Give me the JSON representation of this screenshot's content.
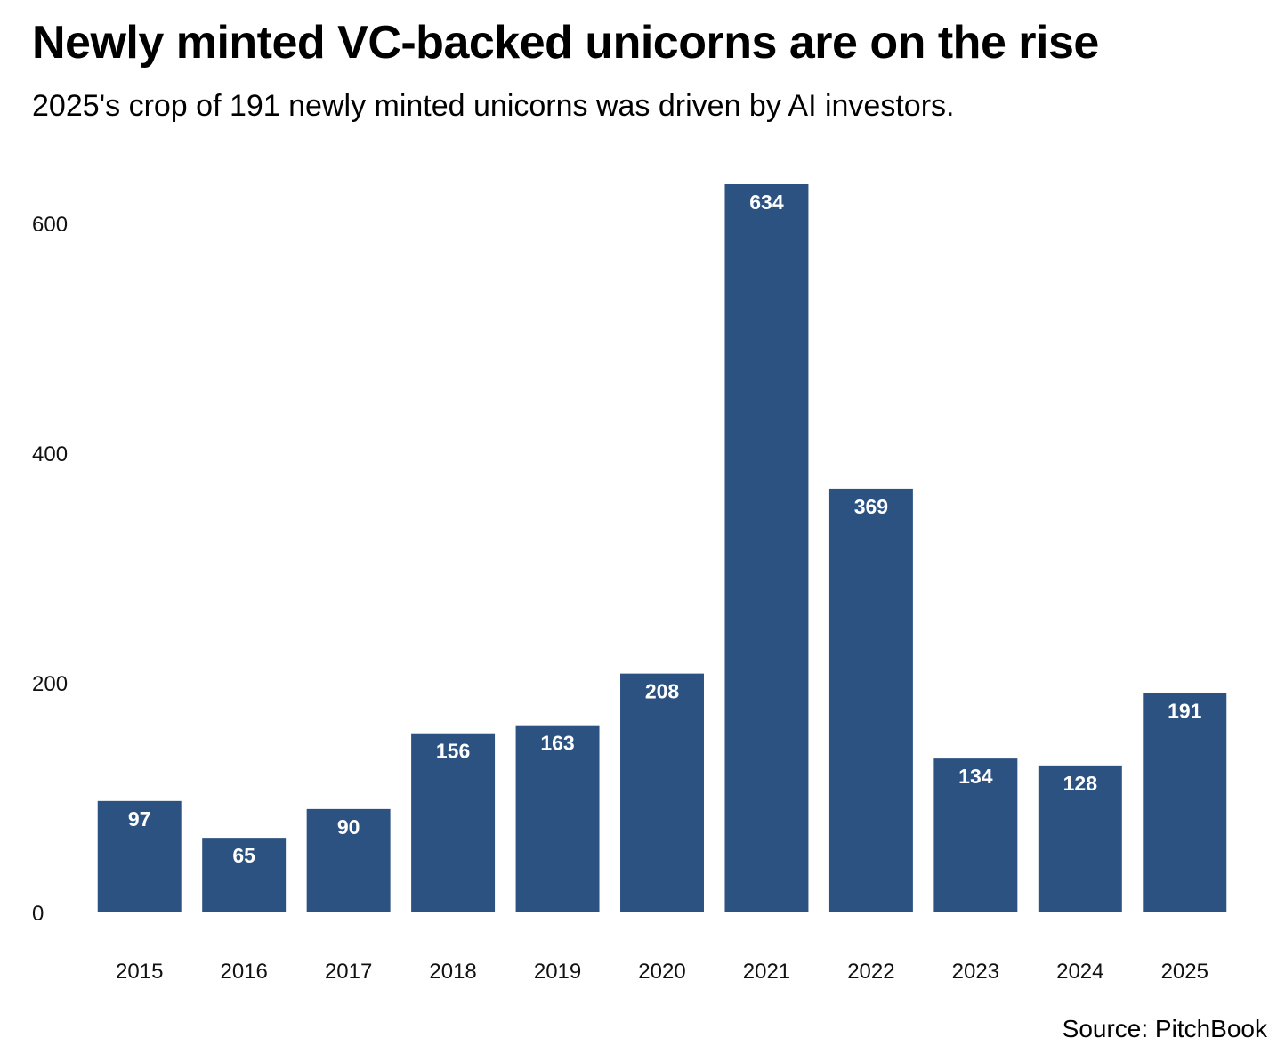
{
  "header": {
    "title": "Newly minted VC-backed unicorns are on the rise",
    "subtitle": "2025's crop of 191 newly minted unicorns was driven by AI investors."
  },
  "footer": {
    "source": "Source: PitchBook"
  },
  "colors": {
    "bar": "#2c5282",
    "label": "#ffffff"
  },
  "chart_data": {
    "type": "bar",
    "title": "Newly minted VC-backed unicorns are on the rise",
    "subtitle": "2025's crop of 191 newly minted unicorns was driven by AI investors.",
    "xlabel": "",
    "ylabel": "",
    "categories": [
      "2015",
      "2016",
      "2017",
      "2018",
      "2019",
      "2020",
      "2021",
      "2022",
      "2023",
      "2024",
      "2025"
    ],
    "values": [
      97,
      65,
      90,
      156,
      163,
      208,
      634,
      369,
      134,
      128,
      191
    ],
    "yticks": [
      0,
      200,
      400,
      600
    ],
    "ylim": [
      0,
      634
    ],
    "grid": false,
    "data_labels": true,
    "legend": "none"
  }
}
